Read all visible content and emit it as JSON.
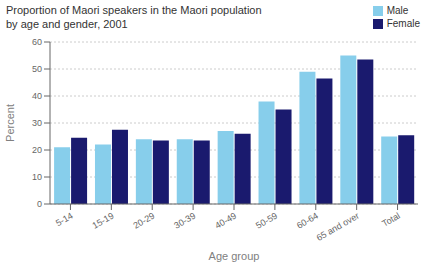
{
  "chart_data": {
    "type": "bar",
    "title": "Proportion of Maori speakers in the Maori population\nby age and gender, 2001",
    "xlabel": "Age group",
    "ylabel": "Percent",
    "categories": [
      "5-14",
      "15-19",
      "20-29",
      "30-39",
      "40-49",
      "50-59",
      "60-64",
      "65 and over",
      "Total"
    ],
    "series": [
      {
        "name": "Male",
        "color": "#87CEEB",
        "values": [
          21,
          22,
          24,
          24,
          27,
          38,
          49,
          55,
          25
        ]
      },
      {
        "name": "Female",
        "color": "#1a1a6e",
        "values": [
          24.5,
          27.5,
          23.5,
          23.5,
          26,
          35,
          46.5,
          53.5,
          25.5
        ]
      }
    ],
    "ylim": [
      0,
      60
    ],
    "yticks": [
      0,
      10,
      20,
      30,
      40,
      50,
      60
    ],
    "grid": true,
    "legend": "upper right"
  }
}
